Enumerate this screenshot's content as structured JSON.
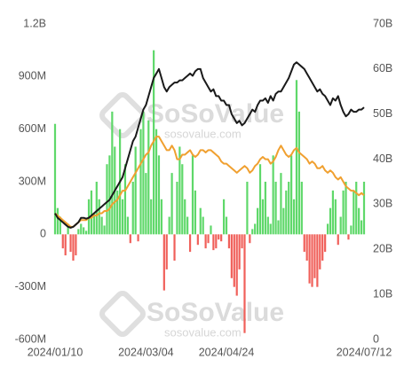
{
  "watermark": [
    "SoSoValue",
    "sosovalue.com"
  ],
  "chart_data": {
    "type": "bar",
    "categories": [
      "2024/01/10",
      null,
      null,
      null,
      null,
      null,
      null,
      null,
      null,
      null,
      null,
      null,
      null,
      null,
      null,
      null,
      null,
      null,
      null,
      null,
      null,
      null,
      null,
      null,
      null,
      null,
      null,
      null,
      null,
      null,
      null,
      null,
      null,
      null,
      null,
      "2024/03/04",
      null,
      null,
      null,
      null,
      null,
      null,
      null,
      null,
      null,
      null,
      null,
      null,
      null,
      null,
      null,
      null,
      null,
      null,
      null,
      null,
      null,
      null,
      null,
      null,
      null,
      null,
      null,
      null,
      null,
      null,
      "2024/04/24",
      null,
      null,
      null,
      null,
      null,
      null,
      null,
      null,
      null,
      null,
      null,
      null,
      null,
      null,
      null,
      null,
      null,
      null,
      null,
      null,
      null,
      null,
      null,
      null,
      null,
      null,
      null,
      null,
      null,
      null,
      null,
      null,
      null,
      null,
      null,
      null,
      null,
      null,
      null,
      null,
      null,
      null,
      null,
      null,
      null,
      null,
      null,
      null,
      null,
      null,
      null,
      null,
      "2024/07/12"
    ],
    "series": [
      {
        "type": "bar",
        "color": "#5fd86a",
        "negative_color": "#f0605a",
        "values": [
          630,
          150,
          100,
          -80,
          -120,
          60,
          -100,
          -150,
          -120,
          30,
          60,
          40,
          20,
          200,
          250,
          120,
          300,
          200,
          100,
          50,
          400,
          450,
          700,
          500,
          250,
          600,
          200,
          400,
          100,
          -50,
          300,
          500,
          -40,
          600,
          700,
          350,
          650,
          200,
          1050,
          600,
          450,
          200,
          -320,
          -200,
          100,
          350,
          -150,
          300,
          500,
          400,
          200,
          100,
          -100,
          450,
          250,
          -60,
          150,
          100,
          -80,
          -50,
          50,
          -90,
          -80,
          -30,
          -40,
          200,
          100,
          -80,
          -250,
          -300,
          -350,
          -200,
          -80,
          -563,
          300,
          -50,
          30,
          60,
          150,
          400,
          200,
          300,
          100,
          60,
          450,
          300,
          80,
          350,
          150,
          250,
          300,
          450,
          200,
          880,
          700,
          300,
          -100,
          -150,
          -280,
          -300,
          -250,
          -300,
          -200,
          -150,
          -100,
          60,
          150,
          250,
          200,
          -60,
          100,
          250,
          300,
          -30,
          50,
          250,
          300,
          150,
          80,
          300
        ]
      },
      {
        "type": "line",
        "axis": "y2",
        "color": "#f0a030",
        "values": [
          28,
          27.5,
          27,
          26.5,
          26,
          25.5,
          25,
          25,
          25.5,
          26,
          26.5,
          26.5,
          26.5,
          27,
          27,
          27.5,
          27.5,
          28,
          28,
          28.5,
          28.5,
          29,
          30,
          30.5,
          31,
          32,
          33,
          33,
          34,
          35,
          36,
          37,
          38,
          39,
          40,
          41,
          41.5,
          43,
          44,
          45,
          45,
          44,
          43,
          42,
          42,
          43,
          42,
          40,
          40,
          41,
          41,
          41.5,
          42,
          41,
          40.5,
          41,
          42,
          42,
          41.5,
          42,
          42,
          41.5,
          41,
          40.5,
          39.5,
          39,
          39,
          38.5,
          38,
          37.5,
          37,
          37.5,
          38,
          38.5,
          38,
          37,
          37.5,
          38.5,
          39,
          40,
          40.5,
          40,
          40,
          39,
          39.5,
          40.5,
          42,
          43,
          42,
          41,
          40.5,
          41,
          42,
          42.5,
          41.5,
          41,
          40.5,
          40,
          39,
          39.5,
          39,
          38,
          38,
          38.5,
          37.5,
          37,
          37.5,
          37,
          36,
          35.5,
          36,
          35,
          34,
          33.5,
          33,
          33,
          32.5,
          32,
          32.5,
          32
        ]
      },
      {
        "type": "line",
        "axis": "y2",
        "color": "#1a1a1a",
        "values": [
          28,
          27,
          26.5,
          26,
          25.5,
          25,
          24.8,
          25,
          25.5,
          26,
          27,
          27,
          26.8,
          27,
          27.5,
          28,
          28.5,
          29,
          29.5,
          30,
          30.5,
          31,
          32,
          33,
          34,
          35,
          36,
          38,
          40,
          42,
          44,
          45,
          47,
          49,
          51,
          52,
          54,
          56,
          58,
          59,
          60,
          58,
          56,
          55,
          56,
          56.5,
          57,
          57,
          57.5,
          57.5,
          58,
          58.5,
          59,
          58.5,
          59.5,
          60,
          60,
          58,
          57,
          56,
          55,
          55.5,
          54,
          54,
          53,
          53,
          52,
          52,
          50,
          49,
          48,
          48.5,
          47.5,
          48,
          49,
          50,
          51,
          50.5,
          52,
          53,
          53,
          53.5,
          52.5,
          54,
          53,
          54.5,
          55,
          55,
          56,
          57,
          58,
          59.5,
          61,
          61.5,
          61,
          60.5,
          60,
          59,
          58,
          57,
          56,
          55,
          55.5,
          54.5,
          54,
          53,
          52,
          53.5,
          53,
          54,
          52,
          50.5,
          49.5,
          50,
          51,
          50.5,
          50.5,
          51,
          51,
          51.5
        ]
      }
    ],
    "ylim": [
      -600,
      1200
    ],
    "yticks": [
      {
        "value": -600,
        "label": "-600M"
      },
      {
        "value": -300,
        "label": "-300M"
      },
      0,
      {
        "value": 300,
        "label": "300M"
      },
      {
        "value": 600,
        "label": "600M"
      },
      {
        "value": 900,
        "label": "900M"
      },
      {
        "value": 1200,
        "label": "1.2B"
      }
    ],
    "y2lim": [
      0,
      70
    ],
    "y2ticks": [
      0,
      {
        "value": 10,
        "label": "10B"
      },
      {
        "value": 20,
        "label": "20B"
      },
      {
        "value": 30,
        "label": "30B"
      },
      {
        "value": 40,
        "label": "40B"
      },
      {
        "value": 50,
        "label": "50B"
      },
      {
        "value": 60,
        "label": "60B"
      },
      {
        "value": 70,
        "label": "70B"
      }
    ],
    "grid": false
  }
}
